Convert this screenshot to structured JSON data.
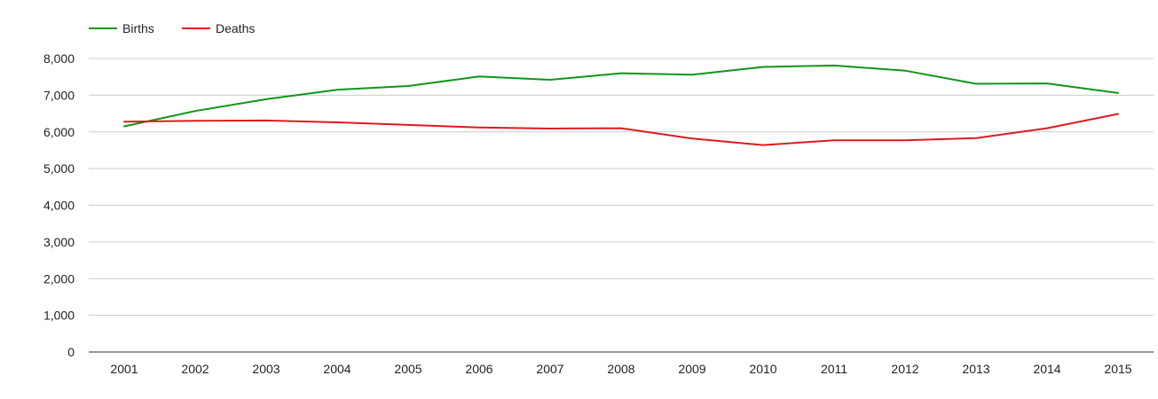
{
  "chart_data": {
    "type": "line",
    "title": "",
    "xlabel": "",
    "ylabel": "",
    "categories": [
      "2001",
      "2002",
      "2003",
      "2004",
      "2005",
      "2006",
      "2007",
      "2008",
      "2009",
      "2010",
      "2011",
      "2012",
      "2013",
      "2014",
      "2015"
    ],
    "ylim": [
      0,
      8000
    ],
    "yticks": [
      0,
      1000,
      2000,
      3000,
      4000,
      5000,
      6000,
      7000,
      8000
    ],
    "ytick_labels": [
      "0",
      "1,000",
      "2,000",
      "3,000",
      "4,000",
      "5,000",
      "6,000",
      "7,000",
      "8,000"
    ],
    "grid": true,
    "legend_position": "top-left",
    "series": [
      {
        "name": "Births",
        "color": "#109618",
        "values": [
          6150,
          6570,
          6890,
          7150,
          7250,
          7510,
          7420,
          7600,
          7560,
          7770,
          7810,
          7670,
          7310,
          7320,
          7060
        ]
      },
      {
        "name": "Deaths",
        "color": "#dc1c1c",
        "values": [
          6280,
          6300,
          6310,
          6260,
          6190,
          6120,
          6090,
          6100,
          5820,
          5640,
          5770,
          5770,
          5830,
          6100,
          6490
        ]
      }
    ]
  }
}
